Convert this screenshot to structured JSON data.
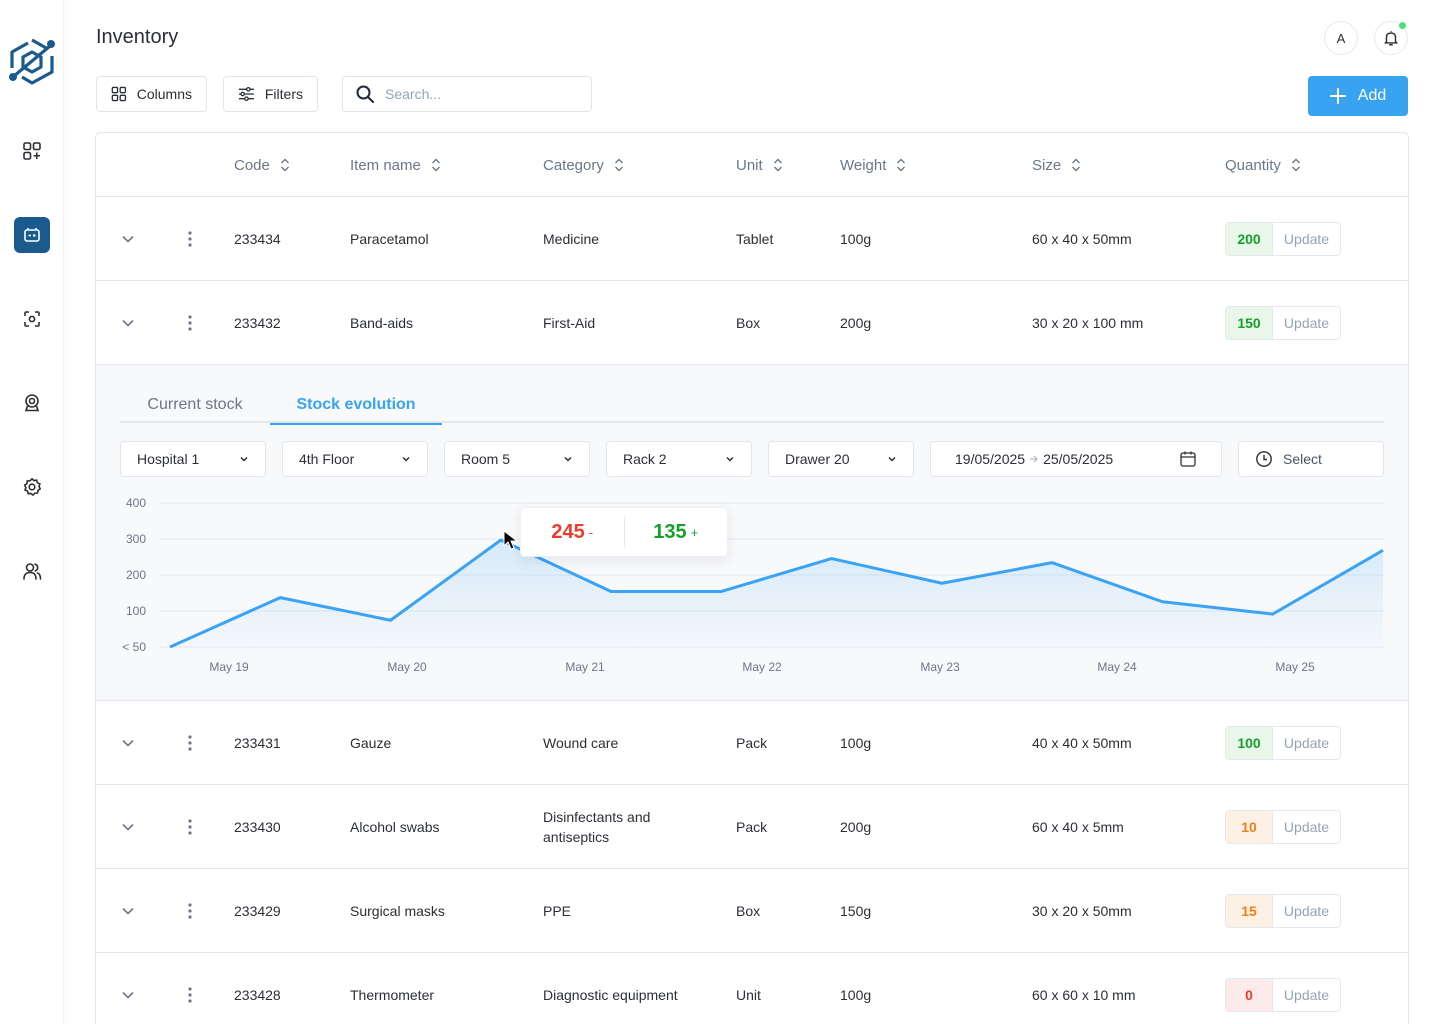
{
  "app": {
    "title": "Inventory"
  },
  "sidebar": {
    "items": [
      {
        "name": "dashboard",
        "icon": "grid-plus-icon",
        "active": false
      },
      {
        "name": "inventory",
        "icon": "battery-icon",
        "active": true
      },
      {
        "name": "scan",
        "icon": "scan-icon",
        "active": false
      },
      {
        "name": "camera",
        "icon": "webcam-icon",
        "active": false
      },
      {
        "name": "settings",
        "icon": "gear-icon",
        "active": false
      },
      {
        "name": "users",
        "icon": "users-icon",
        "active": false
      }
    ]
  },
  "header": {
    "avatar_initial": "A",
    "notification_dot_color": "#4ade80"
  },
  "toolbar": {
    "columns_label": "Columns",
    "filters_label": "Filters",
    "search_placeholder": "Search...",
    "search_value": "",
    "add_label": "Add"
  },
  "table": {
    "columns": [
      "Code",
      "Item name",
      "Category",
      "Unit",
      "Weight",
      "Size",
      "Quantity"
    ],
    "update_label": "Update",
    "rows": [
      {
        "code": "233434",
        "name": "Paracetamol",
        "category": "Medicine",
        "unit": "Tablet",
        "weight": "100g",
        "size": "60 x 40 x 50mm",
        "quantity": "200",
        "status": "ok"
      },
      {
        "code": "233432",
        "name": "Band-aids",
        "category": "First-Aid",
        "unit": "Box",
        "weight": "200g",
        "size": "30 x 20 x 100 mm",
        "quantity": "150",
        "status": "ok"
      },
      {
        "code": "233431",
        "name": "Gauze",
        "category": "Wound care",
        "unit": "Pack",
        "weight": "100g",
        "size": "40 x 40 x 50mm",
        "quantity": "100",
        "status": "ok"
      },
      {
        "code": "233430",
        "name": "Alcohol swabs",
        "category": "Disinfectants and antiseptics",
        "unit": "Pack",
        "weight": "200g",
        "size": "60 x 40 x 5mm",
        "quantity": "10",
        "status": "low"
      },
      {
        "code": "233429",
        "name": "Surgical masks",
        "category": "PPE",
        "unit": "Box",
        "weight": "150g",
        "size": "30 x 20 x 50mm",
        "quantity": "15",
        "status": "low"
      },
      {
        "code": "233428",
        "name": "Thermometer",
        "category": "Diagnostic equipment",
        "unit": "Unit",
        "weight": "100g",
        "size": "60 x 60 x 10 mm",
        "quantity": "0",
        "status": "empty"
      }
    ]
  },
  "status_colors": {
    "ok": {
      "bg": "#e8f7e9",
      "fg": "#16a02b"
    },
    "low": {
      "bg": "#fdf1e6",
      "fg": "#f07c1a"
    },
    "empty": {
      "bg": "#fdeaea",
      "fg": "#ef3b2d"
    }
  },
  "expanded": {
    "tabs": [
      "Current stock",
      "Stock evolution"
    ],
    "active_tab": "Stock evolution",
    "filters": {
      "hospital": "Hospital 1",
      "floor": "4th Floor",
      "room": "Room 5",
      "rack": "Rack 2",
      "drawer": "Drawer 20",
      "date_from": "19/05/2025",
      "date_to": "25/05/2025",
      "time_placeholder": "Select"
    },
    "tooltip": {
      "out_value": "245",
      "out_sign": "-",
      "in_value": "135",
      "in_sign": "+",
      "out_color": "#ef3b2d",
      "in_color": "#16a02b"
    }
  },
  "chart_data": {
    "type": "area",
    "title": "Stock evolution",
    "xlabel": "",
    "ylabel": "",
    "y_ticks": [
      "400",
      "300",
      "200",
      "100",
      "< 50"
    ],
    "x_ticks": [
      "May 19",
      "May 20",
      "May 21",
      "May 22",
      "May 23",
      "May 24",
      "May 25"
    ],
    "ylim": [
      0,
      400
    ],
    "grid": true,
    "line_color": "#3aa3f3",
    "series": [
      {
        "name": "Stock",
        "values": [
          50,
          170,
          115,
          310,
          185,
          185,
          265,
          205,
          255,
          160,
          130,
          285
        ]
      }
    ]
  }
}
